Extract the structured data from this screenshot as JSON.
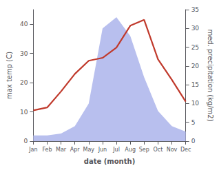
{
  "chart_data": {
    "type": "line",
    "categories": [
      "Jan",
      "Feb",
      "Mar",
      "Apr",
      "May",
      "Jun",
      "Jul",
      "Aug",
      "Sep",
      "Oct",
      "Nov",
      "Dec"
    ],
    "xlabel": "date (month)",
    "ylabel": "max temp (C)",
    "y2label": "med. precipitation (kg/m2)",
    "ylim": [
      0,
      45
    ],
    "yticks": [
      0,
      10,
      20,
      30,
      40
    ],
    "y2lim": [
      0,
      35
    ],
    "y2ticks": [
      0,
      5,
      10,
      15,
      20,
      25,
      30,
      35
    ],
    "grid": false,
    "series": [
      {
        "type": "area",
        "axis": "y2",
        "color": "#b8bfee",
        "values": [
          1.5,
          1.5,
          2.0,
          4.0,
          10.0,
          30.0,
          33.0,
          28.0,
          17.0,
          8.0,
          4.0,
          2.5
        ]
      },
      {
        "type": "line",
        "color": "#c0392b",
        "values": [
          10.5,
          11.5,
          17.0,
          23.0,
          27.5,
          28.5,
          32.0,
          39.5,
          41.5,
          28.0,
          21.0,
          13.5
        ]
      }
    ]
  }
}
